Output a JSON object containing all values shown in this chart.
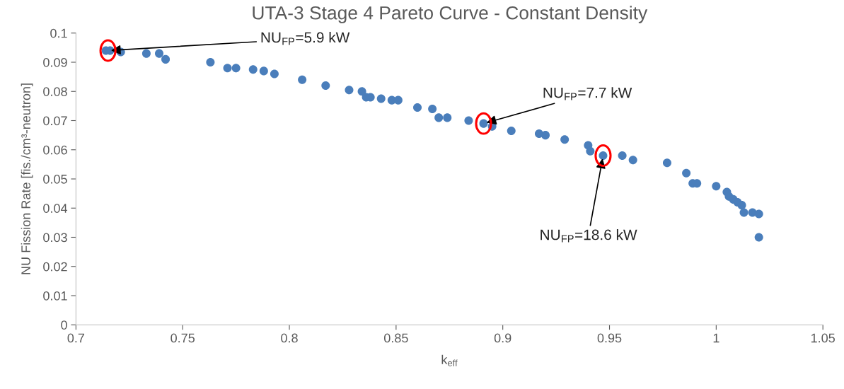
{
  "chart_data": {
    "type": "scatter",
    "title": "UTA-3 Stage 4 Pareto Curve - Constant Density",
    "xlabel": "k$_{eff}$",
    "ylabel": "NU Fission Rate [fis./cm³-neutron]",
    "x": [
      0.714,
      0.716,
      0.721,
      0.733,
      0.739,
      0.742,
      0.763,
      0.771,
      0.775,
      0.783,
      0.788,
      0.793,
      0.806,
      0.817,
      0.828,
      0.834,
      0.836,
      0.838,
      0.843,
      0.848,
      0.851,
      0.86,
      0.867,
      0.87,
      0.874,
      0.884,
      0.891,
      0.895,
      0.904,
      0.917,
      0.92,
      0.929,
      0.94,
      0.941,
      0.947,
      0.956,
      0.961,
      0.977,
      0.986,
      0.989,
      0.991,
      1.0,
      1.005,
      1.006,
      1.008,
      1.01,
      1.012,
      1.013,
      1.017,
      1.02,
      1.02
    ],
    "series": [
      {
        "color": "#4a7ebb",
        "values": [
          0.094,
          0.094,
          0.0935,
          0.093,
          0.093,
          0.091,
          0.09,
          0.088,
          0.088,
          0.0875,
          0.087,
          0.086,
          0.084,
          0.082,
          0.0805,
          0.08,
          0.078,
          0.078,
          0.0775,
          0.077,
          0.077,
          0.0745,
          0.074,
          0.071,
          0.071,
          0.07,
          0.069,
          0.068,
          0.0665,
          0.0655,
          0.065,
          0.0635,
          0.0615,
          0.0595,
          0.058,
          0.058,
          0.0565,
          0.0555,
          0.052,
          0.0485,
          0.0485,
          0.0475,
          0.0455,
          0.044,
          0.043,
          0.042,
          0.041,
          0.0385,
          0.0385,
          0.038,
          0.03
        ]
      }
    ],
    "marker": "circle",
    "xlim": [
      0.7,
      1.05
    ],
    "xticks": [
      0.7,
      0.75,
      0.8,
      0.85,
      0.9,
      0.95,
      1,
      1.05
    ],
    "ylim": [
      0,
      0.1
    ],
    "yticks": [
      0,
      0.01,
      0.02,
      0.03,
      0.04,
      0.05,
      0.06,
      0.07,
      0.08,
      0.09,
      0.1
    ],
    "grid": false,
    "legend": false,
    "annotations": [
      {
        "text": "NU$_{FP}$=5.9 kW",
        "x": 0.715,
        "y": 0.094
      },
      {
        "text": "NU$_{FP}$=7.7 kW",
        "x": 0.891,
        "y": 0.069
      },
      {
        "text": "NU$_{FP}$=18.6 kW",
        "x": 0.947,
        "y": 0.058
      }
    ]
  }
}
